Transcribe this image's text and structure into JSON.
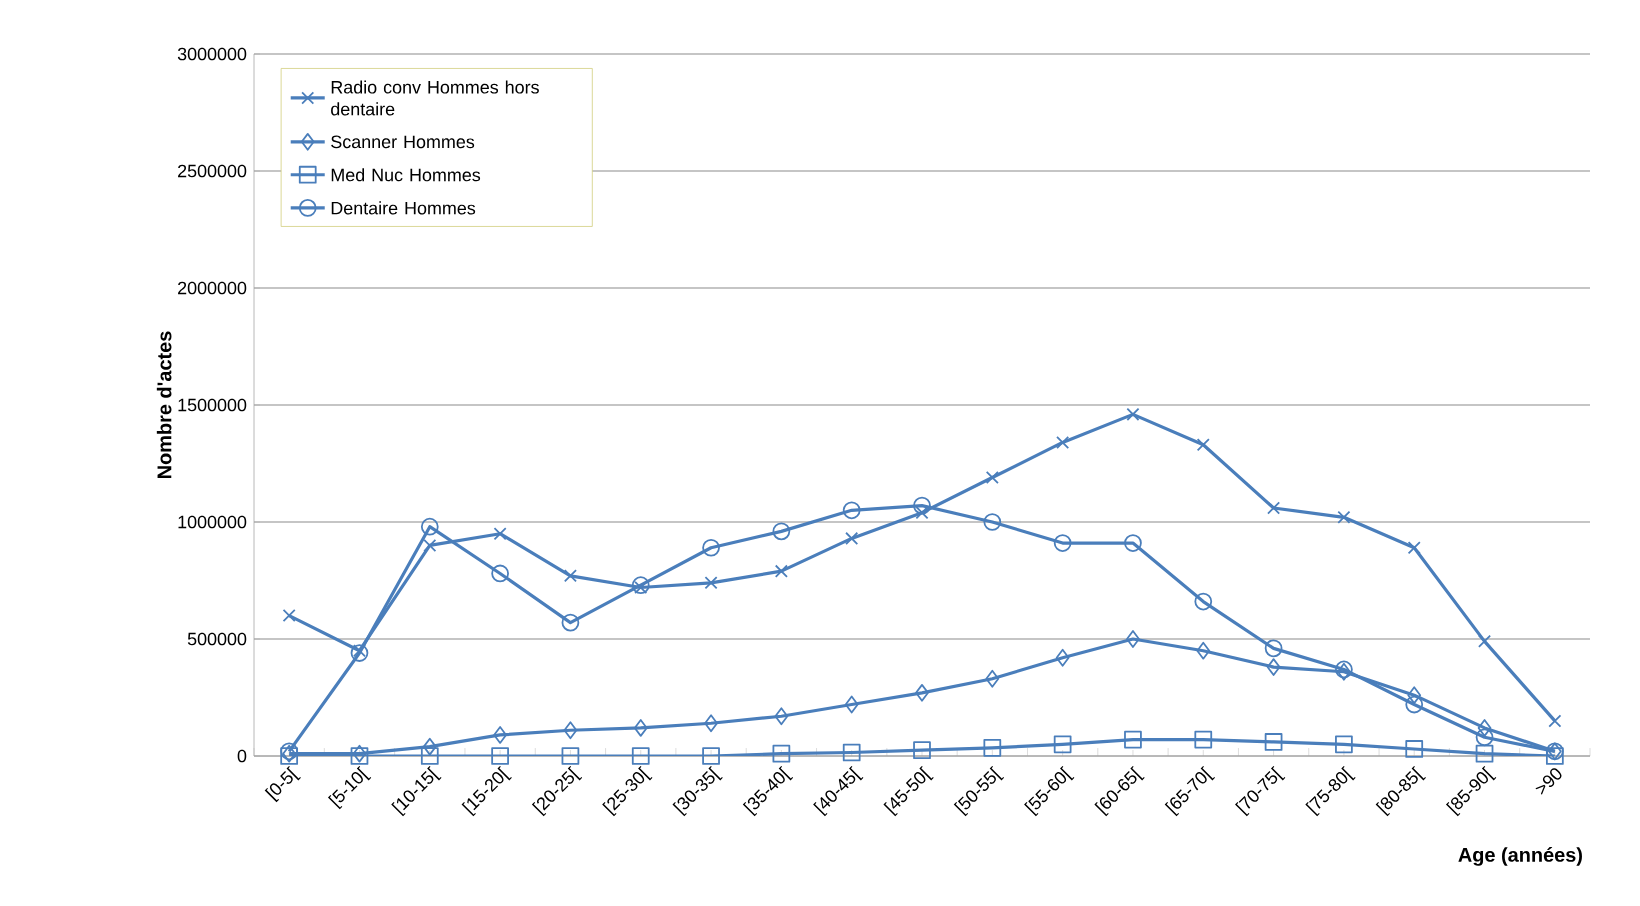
{
  "chart_data": {
    "type": "line",
    "xlabel": "Age (années)",
    "ylabel": "Nombre d'actes",
    "categories": [
      "[0-5[",
      "[5-10[",
      "[10-15[",
      "[15-20[",
      "[20-25[",
      "[25-30[",
      "[30-35[",
      "[35-40[",
      "[40-45[",
      "[45-50[",
      "[50-55[",
      "[55-60[",
      "[60-65[",
      "[65-70[",
      "[70-75[",
      "[75-80[",
      "[80-85[",
      "[85-90[",
      ">90"
    ],
    "series": [
      {
        "name": "Radio conv Hommes hors dentaire",
        "color": "#4a7ebb",
        "marker": "cross",
        "values": [
          600000,
          450000,
          900000,
          950000,
          770000,
          720000,
          740000,
          790000,
          930000,
          1040000,
          1190000,
          1340000,
          1460000,
          1330000,
          1060000,
          1020000,
          890000,
          490000,
          150000
        ]
      },
      {
        "name": "Scanner Hommes",
        "color": "#4a7ebb",
        "marker": "diamond",
        "values": [
          10000,
          10000,
          40000,
          90000,
          110000,
          120000,
          140000,
          170000,
          220000,
          270000,
          330000,
          420000,
          500000,
          450000,
          380000,
          360000,
          260000,
          120000,
          20000
        ]
      },
      {
        "name": "Med Nuc Hommes",
        "color": "#4a7ebb",
        "marker": "square",
        "values": [
          0,
          0,
          0,
          0,
          0,
          0,
          0,
          10000,
          15000,
          25000,
          35000,
          50000,
          70000,
          70000,
          60000,
          50000,
          30000,
          10000,
          0
        ]
      },
      {
        "name": "Dentaire Hommes",
        "color": "#4a7ebb",
        "marker": "circle",
        "values": [
          20000,
          440000,
          980000,
          780000,
          570000,
          730000,
          890000,
          960000,
          1050000,
          1070000,
          1000000,
          910000,
          910000,
          660000,
          460000,
          370000,
          220000,
          80000,
          20000
        ]
      }
    ],
    "ylim": [
      0,
      3000000
    ],
    "yticks": [
      0,
      500000,
      1000000,
      1500000,
      2000000,
      2500000,
      3000000
    ],
    "grid": "y",
    "legend": "top left",
    "line_style": "solid"
  }
}
